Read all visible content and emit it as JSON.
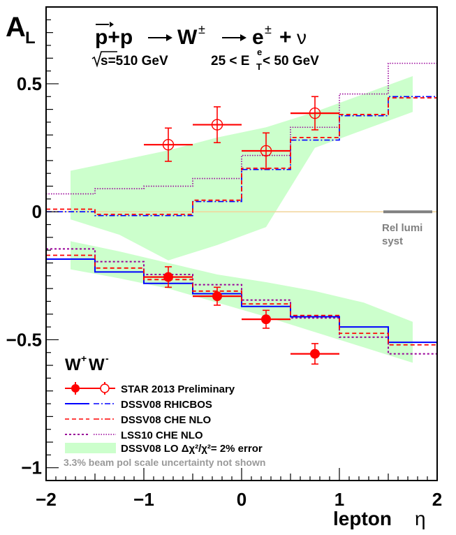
{
  "chart_data": {
    "type": "scatter",
    "y_axis_label": "A",
    "y_axis_label_sub": "L",
    "x_axis_label": "lepton",
    "x_axis_label_symbol": "η",
    "xlim": [
      -2,
      2
    ],
    "ylim": [
      -1.05,
      0.8
    ],
    "x_ticks": [
      -2,
      -1,
      0,
      1,
      2
    ],
    "x_tick_labels": [
      "−2",
      "−1",
      "0",
      "1",
      "2"
    ],
    "y_ticks": [
      -1,
      -0.5,
      0,
      0.5
    ],
    "y_tick_labels": [
      "−1",
      "−0.5",
      "0",
      "0.5"
    ],
    "header": {
      "process_left": "p+p",
      "process_w": "W",
      "process_w_sup": "±",
      "process_e": "e",
      "process_e_sup": "±",
      "process_plus": "+",
      "process_nu": "ν",
      "energy": "s=510 GeV",
      "cut_low": "25 < E",
      "cut_sub": "T",
      "cut_sup": "e",
      "cut_high": " < 50 GeV"
    },
    "wplus_wminus_label": {
      "w1": "W",
      "s1": "+",
      "w2": "W",
      "s2": "-"
    },
    "rel_lumi": {
      "line1": "Rel lumi",
      "line2": "syst",
      "x_range": [
        1.45,
        1.95
      ],
      "value": 0.0
    },
    "footnote": "3.3% beam pol scale uncertainty not shown",
    "legend": [
      {
        "label": "STAR 2013 Preliminary"
      },
      {
        "label": "DSSV08  RHICBOS"
      },
      {
        "label": "DSSV08  CHE NLO"
      },
      {
        "label": "LSS10 CHE NLO"
      },
      {
        "label": "DSSV08 LO  Δχ²/χ²= 2% error"
      }
    ],
    "colors": {
      "data": "#ff0000",
      "rhicbos": "#0000ff",
      "che": "#ff0000",
      "lss": "#990099",
      "band": "#ccffcc",
      "rel_lumi": "#808080",
      "zero_line": "#f2d49a"
    },
    "series": [
      {
        "name": "W+ data",
        "marker": "filled",
        "x": [
          -0.75,
          -0.25,
          0.25,
          0.75
        ],
        "y": [
          -0.255,
          -0.33,
          -0.42,
          -0.555
        ],
        "x_err": [
          0.25,
          0.25,
          0.25,
          0.25
        ],
        "y_err": [
          0.04,
          0.035,
          0.035,
          0.04
        ]
      },
      {
        "name": "W- data",
        "marker": "open",
        "x": [
          -0.75,
          -0.25,
          0.25,
          0.75
        ],
        "y": [
          0.262,
          0.34,
          0.238,
          0.385
        ],
        "x_err": [
          0.25,
          0.25,
          0.25,
          0.25
        ],
        "y_err": [
          0.065,
          0.07,
          0.07,
          0.065
        ]
      }
    ],
    "bin_edges": [
      -2,
      -1.5,
      -1,
      -0.5,
      0,
      0.5,
      1,
      1.5,
      2
    ],
    "histograms": {
      "rhicbos_wminus": [
        0.0,
        -0.015,
        -0.015,
        0.04,
        0.165,
        0.28,
        0.375,
        0.45
      ],
      "che_wminus": [
        0.01,
        -0.01,
        -0.01,
        0.045,
        0.17,
        0.29,
        0.38,
        0.445
      ],
      "lss_wminus": [
        0.07,
        0.09,
        0.1,
        0.13,
        0.22,
        0.33,
        0.46,
        0.58
      ],
      "rhicbos_wplus": [
        -0.185,
        -0.235,
        -0.28,
        -0.32,
        -0.37,
        -0.41,
        -0.45,
        -0.51
      ],
      "che_wplus": [
        -0.17,
        -0.22,
        -0.265,
        -0.31,
        -0.36,
        -0.405,
        -0.475,
        -0.52
      ],
      "lss_wplus": [
        -0.145,
        -0.195,
        -0.245,
        -0.285,
        -0.345,
        -0.415,
        -0.49,
        -0.555
      ]
    },
    "bands": {
      "wminus": {
        "x": [
          -1.75,
          -1.25,
          -0.75,
          -0.25,
          0.25,
          0.75,
          1.25,
          1.75
        ],
        "upper": [
          0.16,
          0.2,
          0.24,
          0.29,
          0.33,
          0.39,
          0.46,
          0.53
        ],
        "lower": [
          -0.03,
          -0.09,
          -0.19,
          -0.13,
          -0.06,
          0.25,
          0.32,
          0.39
        ]
      },
      "wplus": {
        "x": [
          -1.75,
          -1.25,
          -0.75,
          -0.25,
          0.25,
          0.75,
          1.25,
          1.75
        ],
        "upper": [
          -0.115,
          -0.155,
          -0.2,
          -0.245,
          -0.275,
          -0.31,
          -0.355,
          -0.43
        ],
        "lower": [
          -0.225,
          -0.26,
          -0.3,
          -0.355,
          -0.41,
          -0.47,
          -0.53,
          -0.59
        ]
      }
    }
  }
}
